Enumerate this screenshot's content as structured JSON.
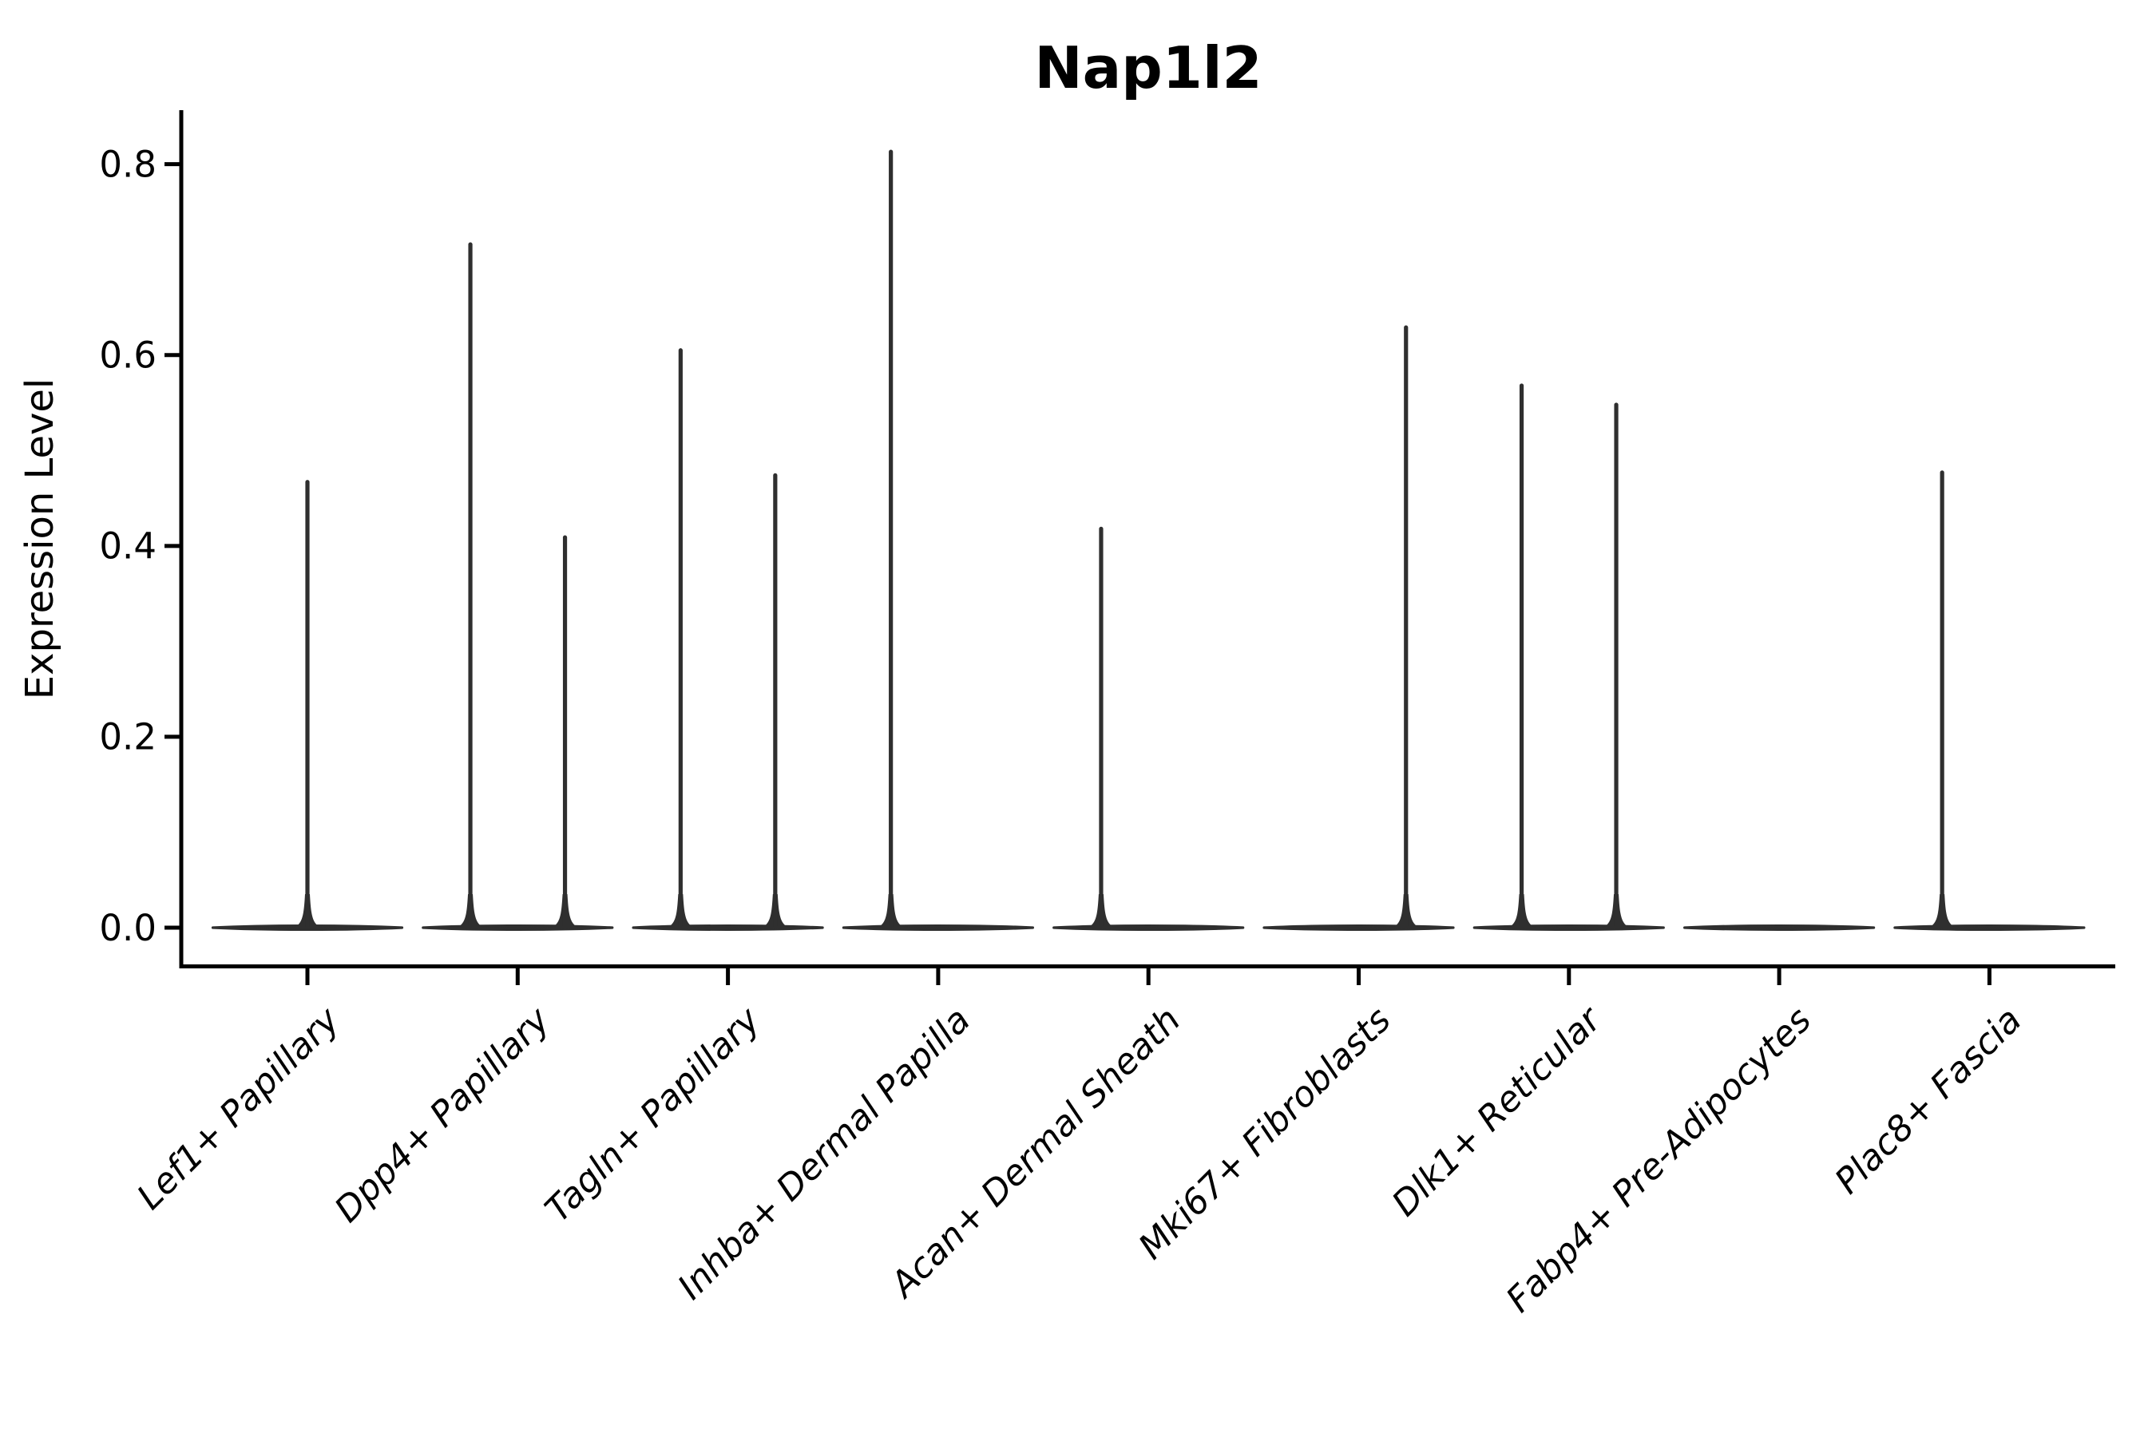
{
  "chart_data": {
    "type": "violin",
    "title": "Nap1l2",
    "xlabel": "",
    "ylabel": "Expression Level",
    "grid": false,
    "legend": null,
    "ytick_labels": [
      "0.0",
      "0.2",
      "0.4",
      "0.6",
      "0.8"
    ],
    "ytick_values": [
      0.0,
      0.2,
      0.4,
      0.6,
      0.8
    ],
    "ylim": [
      -0.04,
      0.854
    ],
    "categories": [
      "Lef1+ Papillary",
      "Dpp4+ Papillary",
      "Tagln+ Papillary",
      "Inhba+ Dermal Papilla",
      "Acan+ Dermal Sheath",
      "Mki67+ Fibroblasts",
      "Dlk1+ Reticular",
      "Fabp4+ Pre-Adipocytes",
      "Plac8+ Fascia"
    ],
    "violins": [
      {
        "category": "Lef1+ Papillary",
        "spikes": [
          {
            "offset": "center",
            "max": 0.467
          }
        ]
      },
      {
        "category": "Dpp4+ Papillary",
        "spikes": [
          {
            "offset": "left",
            "max": 0.716
          },
          {
            "offset": "right",
            "max": 0.409
          }
        ]
      },
      {
        "category": "Tagln+ Papillary",
        "spikes": [
          {
            "offset": "left",
            "max": 0.605
          },
          {
            "offset": "right",
            "max": 0.474
          }
        ]
      },
      {
        "category": "Inhba+ Dermal Papilla",
        "spikes": [
          {
            "offset": "left",
            "max": 0.813
          },
          {
            "offset": "right",
            "max": 0.0
          }
        ]
      },
      {
        "category": "Acan+ Dermal Sheath",
        "spikes": [
          {
            "offset": "left",
            "max": 0.418
          },
          {
            "offset": "right",
            "max": 0.0
          }
        ]
      },
      {
        "category": "Mki67+ Fibroblasts",
        "spikes": [
          {
            "offset": "left",
            "max": 0.0
          },
          {
            "offset": "right",
            "max": 0.629
          }
        ]
      },
      {
        "category": "Dlk1+ Reticular",
        "spikes": [
          {
            "offset": "left",
            "max": 0.568
          },
          {
            "offset": "right",
            "max": 0.548
          }
        ]
      },
      {
        "category": "Fabp4+ Pre-Adipocytes",
        "spikes": [
          {
            "offset": "left",
            "max": 0.0
          },
          {
            "offset": "right",
            "max": 0.0
          }
        ]
      },
      {
        "category": "Plac8+ Fascia",
        "spikes": [
          {
            "offset": "left",
            "max": 0.477
          },
          {
            "offset": "right",
            "max": 0.0
          }
        ]
      }
    ],
    "colors": {
      "violin": "#2f2f2f",
      "axis": "#000000",
      "text": "#000000",
      "background": "#ffffff"
    }
  }
}
